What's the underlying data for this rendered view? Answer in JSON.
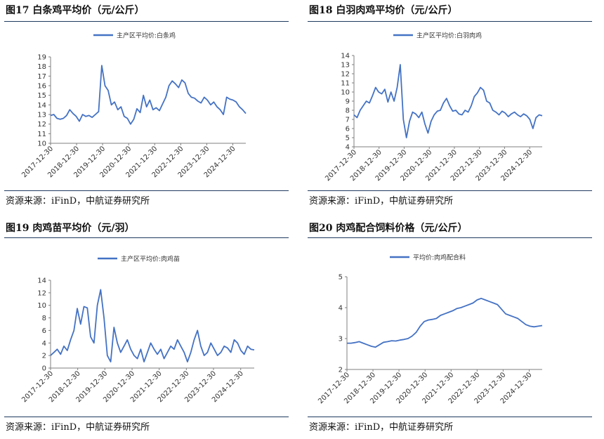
{
  "charts": [
    {
      "title": "图17  白条鸡平均价（元/公斤）",
      "source": "资源来源：iFinD，中航证券研究所",
      "legend": "主产区平均价:白条鸡",
      "color": "#4472C4",
      "chart_data": {
        "type": "line",
        "title": "",
        "xlabel": "",
        "ylabel": "",
        "ylim": [
          10,
          19
        ],
        "yticks": [
          "10",
          "11",
          "12",
          "13",
          "14",
          "15",
          "16",
          "17",
          "18",
          "19"
        ],
        "xticks": [
          "2017-12-30",
          "2018-12-30",
          "2019-12-30",
          "2020-12-30",
          "2021-12-30",
          "2022-12-30",
          "2023-12-30",
          "2024-12-30"
        ],
        "x_start": "2017-12-30",
        "x_end": "2025-06-30",
        "series": [
          {
            "name": "主产区平均价:白条鸡",
            "values": [
              12.9,
              13.0,
              12.6,
              12.5,
              12.6,
              12.9,
              13.5,
              13.1,
              12.8,
              12.3,
              13.0,
              12.8,
              12.9,
              12.7,
              13.0,
              13.3,
              18.1,
              16.0,
              15.5,
              14.0,
              14.3,
              13.5,
              13.8,
              12.8,
              12.6,
              12.0,
              12.5,
              13.6,
              13.2,
              15.0,
              13.8,
              14.5,
              13.5,
              13.7,
              13.4,
              14.1,
              14.8,
              16.0,
              16.5,
              16.2,
              15.8,
              16.6,
              16.3,
              15.2,
              14.8,
              14.7,
              14.4,
              14.2,
              14.8,
              14.5,
              14.0,
              14.3,
              13.8,
              13.5,
              13.0,
              14.8,
              14.6,
              14.5,
              14.3,
              13.8,
              13.5,
              13.1
            ]
          }
        ]
      }
    },
    {
      "title": "图18  白羽肉鸡平均价（元/公斤）",
      "source": "资源来源：iFinD，中航证券研究所",
      "legend": "主产区平均价:白羽肉鸡",
      "color": "#4472C4",
      "chart_data": {
        "type": "line",
        "title": "",
        "xlabel": "",
        "ylabel": "",
        "ylim": [
          4,
          14
        ],
        "yticks": [
          "4",
          "5",
          "6",
          "7",
          "8",
          "9",
          "10",
          "11",
          "12",
          "13",
          "14"
        ],
        "xticks": [
          "2017-12-30",
          "2018-12-30",
          "2019-12-30",
          "2020-12-30",
          "2021-12-30",
          "2022-12-30",
          "2023-12-30",
          "2024-12-30"
        ],
        "x_start": "2017-12-30",
        "x_end": "2025-06-30",
        "series": [
          {
            "name": "主产区平均价:白羽肉鸡",
            "values": [
              7.5,
              7.2,
              8.0,
              8.5,
              9.0,
              8.8,
              9.6,
              10.5,
              10.0,
              9.8,
              10.3,
              8.9,
              10.0,
              9.0,
              10.5,
              13.0,
              7.0,
              5.0,
              6.8,
              7.8,
              7.6,
              7.2,
              7.8,
              6.5,
              5.5,
              6.8,
              7.5,
              7.9,
              8.0,
              8.8,
              9.3,
              8.5,
              7.9,
              8.0,
              7.6,
              7.5,
              8.0,
              7.8,
              8.5,
              9.5,
              9.9,
              10.5,
              10.2,
              9.0,
              8.8,
              8.0,
              7.8,
              7.5,
              7.9,
              7.7,
              7.3,
              7.6,
              7.8,
              7.5,
              7.3,
              7.6,
              7.4,
              7.0,
              6.0,
              7.2,
              7.5,
              7.4
            ]
          }
        ]
      }
    },
    {
      "title": "图19  肉鸡苗平均价（元/羽）",
      "source": "资源来源：iFinD，中航证券研究所",
      "legend": "主产区平均价:肉鸡苗",
      "color": "#4472C4",
      "chart_data": {
        "type": "line",
        "title": "",
        "xlabel": "",
        "ylabel": "",
        "ylim": [
          0,
          14
        ],
        "yticks": [
          "0",
          "2",
          "4",
          "6",
          "8",
          "10",
          "12",
          "14"
        ],
        "xticks": [
          "2017-12-30",
          "2018-12-30",
          "2019-12-30",
          "2020-12-30",
          "2021-12-30",
          "2022-12-30",
          "2023-12-30",
          "2024-12-30"
        ],
        "x_start": "2017-12-30",
        "x_end": "2025-06-30",
        "series": [
          {
            "name": "主产区平均价:肉鸡苗",
            "values": [
              2.0,
              2.5,
              3.0,
              2.2,
              3.5,
              2.8,
              4.5,
              6.0,
              9.5,
              7.0,
              9.8,
              9.6,
              5.0,
              4.0,
              10.0,
              12.5,
              8.0,
              2.0,
              1.0,
              6.5,
              4.0,
              2.5,
              3.5,
              4.5,
              3.0,
              2.0,
              1.5,
              3.0,
              1.0,
              2.5,
              4.0,
              3.0,
              2.2,
              3.0,
              1.5,
              2.5,
              3.5,
              3.0,
              4.5,
              3.5,
              2.5,
              1.0,
              2.5,
              4.5,
              6.0,
              3.5,
              2.0,
              2.5,
              4.0,
              3.0,
              2.0,
              2.5,
              3.5,
              3.2,
              2.5,
              4.5,
              4.0,
              2.8,
              2.2,
              3.5,
              3.0,
              2.9
            ]
          }
        ]
      }
    },
    {
      "title": "图20  肉鸡配合饲料价格（元/公斤）",
      "source": "资源来源：iFinD，中航证券研究所",
      "legend": "平均价:肉鸡配合料",
      "color": "#4472C4",
      "chart_data": {
        "type": "line",
        "title": "",
        "xlabel": "",
        "ylabel": "",
        "ylim": [
          2,
          5
        ],
        "yticks": [
          "2",
          "3",
          "4",
          "5"
        ],
        "xticks": [
          "2017-12-30",
          "2018-12-30",
          "2019-12-30",
          "2020-12-30",
          "2021-12-30",
          "2022-12-30",
          "2023-12-30",
          "2024-12-30"
        ],
        "x_start": "2017-12-30",
        "x_end": "2025-06-30",
        "series": [
          {
            "name": "平均价:肉鸡配合料",
            "values": [
              2.85,
              2.85,
              2.87,
              2.9,
              2.85,
              2.8,
              2.75,
              2.72,
              2.8,
              2.88,
              2.9,
              2.93,
              2.92,
              2.95,
              2.97,
              3.0,
              3.08,
              3.2,
              3.4,
              3.55,
              3.6,
              3.62,
              3.65,
              3.75,
              3.8,
              3.85,
              3.9,
              3.97,
              4.0,
              4.05,
              4.1,
              4.15,
              4.25,
              4.3,
              4.25,
              4.2,
              4.15,
              4.1,
              3.95,
              3.8,
              3.75,
              3.7,
              3.65,
              3.55,
              3.45,
              3.4,
              3.38,
              3.4,
              3.42
            ]
          }
        ]
      }
    }
  ]
}
